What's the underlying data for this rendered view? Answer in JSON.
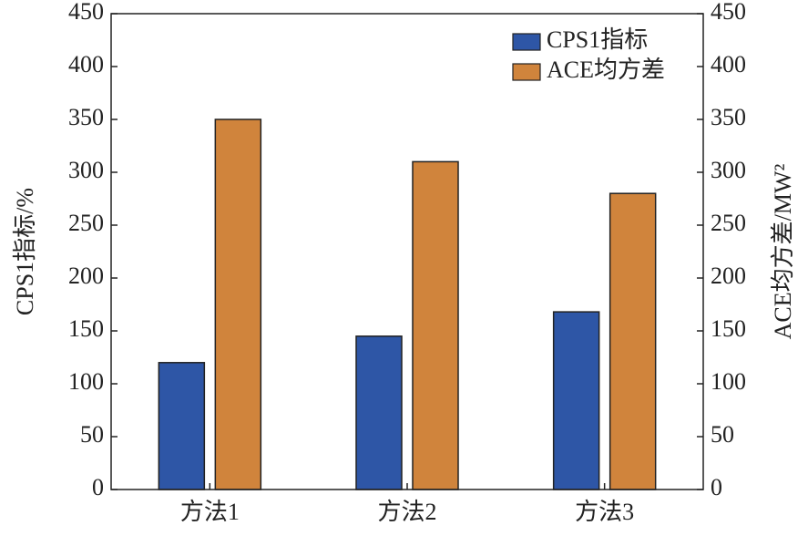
{
  "chart_data": {
    "type": "bar",
    "categories": [
      "方法1",
      "方法2",
      "方法3"
    ],
    "y_label": "CPS1指标/%",
    "y2_label": "ACE均方差/MW²",
    "series": [
      {
        "name": "CPS1指标",
        "color": "#2e56a6",
        "values": [
          120,
          145,
          168
        ]
      },
      {
        "name": "ACE均方差",
        "color": "#d0843c",
        "values": [
          350,
          310,
          280
        ],
        "axis": "y2"
      }
    ],
    "ylim": [
      0,
      450
    ],
    "yticks": [
      0,
      50,
      100,
      150,
      200,
      250,
      300,
      350,
      400,
      450
    ],
    "y2lim": [
      0,
      450
    ],
    "y2ticks": [
      0,
      50,
      100,
      150,
      200,
      250,
      300,
      350,
      400,
      450
    ],
    "legend": "upper right"
  }
}
